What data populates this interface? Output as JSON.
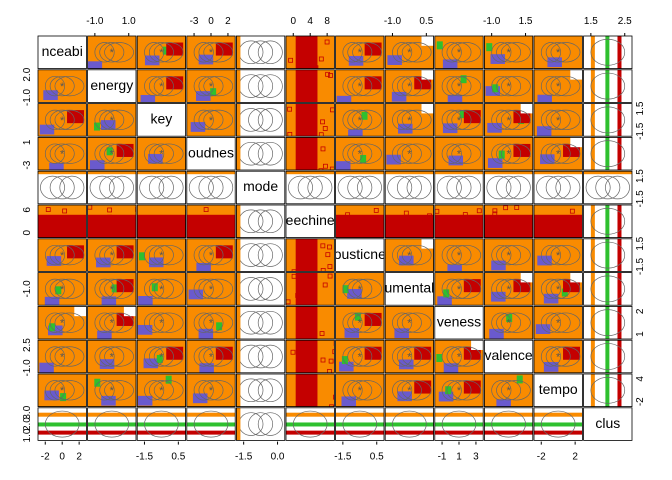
{
  "chart_data": {
    "type": "scatter_matrix",
    "variables": [
      {
        "label": "nceabi",
        "x_ticks": [
          "-2",
          "0",
          "2"
        ],
        "y_ticks": []
      },
      {
        "label": "energy",
        "x_ticks": [
          "-1.0",
          "1.0"
        ],
        "y_ticks": [
          "-1.0",
          "2.0"
        ]
      },
      {
        "label": "key",
        "x_ticks": [
          "-1.5",
          "0.5"
        ],
        "y_ticks": [
          "-1.5",
          "1.5"
        ]
      },
      {
        "label": "oudnes",
        "x_ticks": [
          "-3",
          "0",
          "2"
        ],
        "y_ticks": [
          "-3",
          "1"
        ]
      },
      {
        "label": "mode",
        "x_ticks": [
          "-1.5",
          "0.0"
        ],
        "y_ticks": [
          "-1.5",
          "1.5"
        ]
      },
      {
        "label": "eechine",
        "x_ticks": [
          "0",
          "4",
          "8"
        ],
        "y_ticks": [
          "0",
          "6"
        ]
      },
      {
        "label": "ousticne",
        "x_ticks": [
          "-1.5",
          "0.5"
        ],
        "y_ticks": [
          "-1.5",
          "1.5"
        ]
      },
      {
        "label": "umental",
        "x_ticks": [
          "-1.0",
          "0.5"
        ],
        "y_ticks": [
          "-1.0"
        ]
      },
      {
        "label": "veness",
        "x_ticks": [
          "-1",
          "1",
          "3"
        ],
        "y_ticks": [
          "1",
          "2"
        ]
      },
      {
        "label": "valence",
        "x_ticks": [
          "-1.0",
          "1.5"
        ],
        "y_ticks": [
          "-1.0",
          "2.5"
        ]
      },
      {
        "label": "tempo",
        "x_ticks": [
          "-2",
          "2"
        ],
        "y_ticks": [
          "-2",
          "4"
        ]
      },
      {
        "label": "clus",
        "x_ticks": [
          "1.5",
          "2.5"
        ],
        "y_ticks": [
          "1.0",
          "2.0",
          "3.0"
        ]
      }
    ]
  }
}
